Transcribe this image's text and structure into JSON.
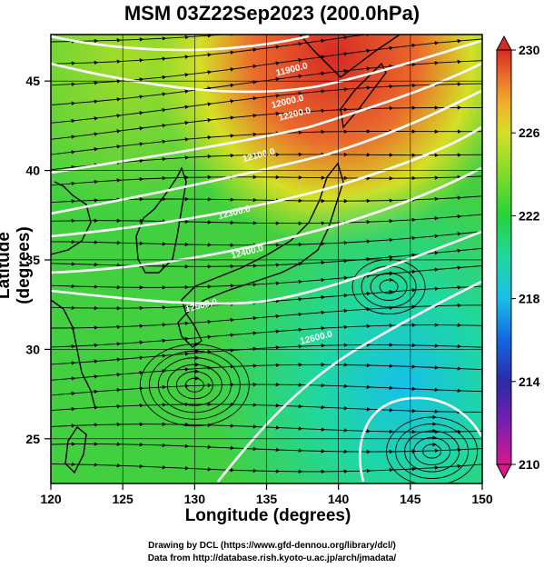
{
  "title": "MSM 03Z22Sep2023 (200.0hPa)",
  "xlabel": "Longitude (degrees)",
  "ylabel": "Latitude  (degrees)",
  "x_ticks": [
    "120",
    "125",
    "130",
    "135",
    "140",
    "145",
    "150"
  ],
  "y_ticks": [
    "25",
    "30",
    "35",
    "40",
    "45"
  ],
  "colorbar_ticks": [
    "230",
    "226",
    "222",
    "218",
    "214",
    "210"
  ],
  "contour_labels": [
    {
      "text": "11900.0",
      "lon": 136.8,
      "lat": 45.5
    },
    {
      "text": "12000.0",
      "lon": 136.5,
      "lat": 43.7
    },
    {
      "text": "12100.0",
      "lon": 134.5,
      "lat": 40.7
    },
    {
      "text": "12200.0",
      "lon": 137.0,
      "lat": 43.0
    },
    {
      "text": "12300.0",
      "lon": 132.8,
      "lat": 37.5
    },
    {
      "text": "12400.0",
      "lon": 133.7,
      "lat": 35.3
    },
    {
      "text": "12500.0",
      "lon": 130.5,
      "lat": 32.3
    },
    {
      "text": "12600.0",
      "lon": 138.5,
      "lat": 30.5
    }
  ],
  "credits": {
    "line1": "Drawing by DCL (https://www.gfd-dennou.org/library/dcl/)",
    "line2": "Data from http://database.rish.kyoto-u.ac.jp/arch/jmadata/"
  },
  "colors": {
    "colorbar": [
      "#d61a8c",
      "#7a1fb0",
      "#2b2aa8",
      "#1466e0",
      "#17c0e8",
      "#1fd8a0",
      "#25d33a",
      "#7fdb2a",
      "#d4e025",
      "#f0b12a",
      "#ea6a2c",
      "#d62a24"
    ],
    "field_main": "#42d040",
    "field_north": "#d43826",
    "field_south": "#36d6a6"
  },
  "chart_data": {
    "type": "heatmap",
    "variable": "temperature-like color field with streamlines and contours",
    "x_range": [
      120,
      150
    ],
    "y_range": [
      22.5,
      47.6
    ],
    "color_range": [
      210,
      230
    ]
  }
}
